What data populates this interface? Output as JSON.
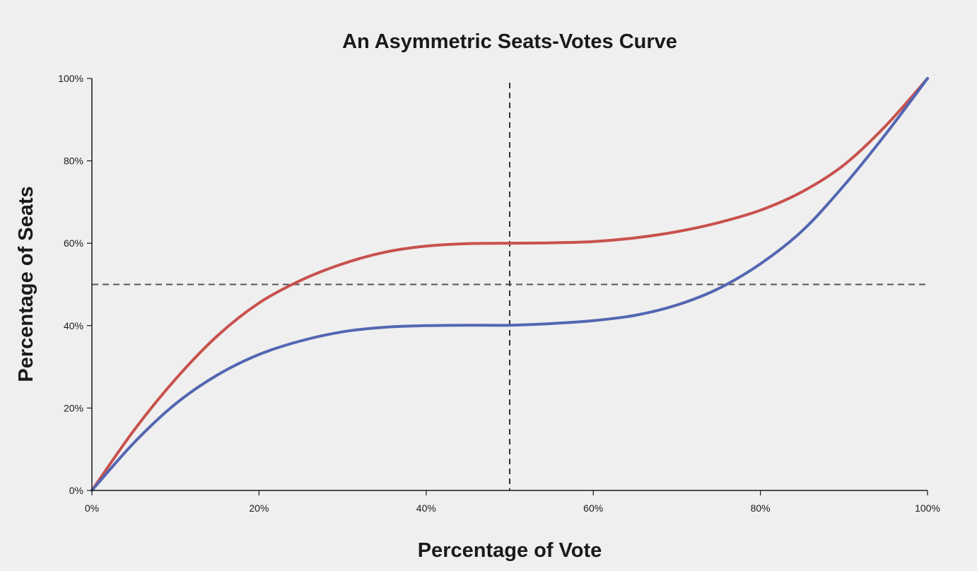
{
  "chart_data": {
    "type": "line",
    "title": "An Asymmetric Seats-Votes Curve",
    "xlabel": "Percentage of Vote",
    "ylabel": "Percentage of Seats",
    "xlim": [
      0,
      100
    ],
    "ylim": [
      0,
      100
    ],
    "x_ticks": [
      0,
      20,
      40,
      60,
      80,
      100
    ],
    "x_tick_labels": [
      "0%",
      "20%",
      "40%",
      "60%",
      "80%",
      "100%"
    ],
    "y_ticks": [
      0,
      20,
      40,
      60,
      80,
      100
    ],
    "y_tick_labels": [
      "0%",
      "20%",
      "40%",
      "60%",
      "80%",
      "100%"
    ],
    "grid": false,
    "reference_lines": [
      {
        "orientation": "horizontal",
        "value": 50,
        "style": "dashed"
      },
      {
        "orientation": "vertical",
        "value": 50,
        "style": "dashed"
      }
    ],
    "series": [
      {
        "color": "#c8514d",
        "x": [
          0,
          5,
          10,
          15,
          20,
          25,
          30,
          35,
          40,
          45,
          50,
          55,
          60,
          65,
          70,
          75,
          80,
          85,
          90,
          95,
          100
        ],
        "y": [
          0,
          14.5,
          27,
          37.5,
          45.5,
          51,
          55,
          57.8,
          59.3,
          59.9,
          60,
          60.1,
          60.4,
          61.3,
          62.8,
          65,
          68,
          72.5,
          79,
          88.5,
          100
        ]
      },
      {
        "color": "#5366b2",
        "x": [
          0,
          5,
          10,
          15,
          20,
          25,
          30,
          35,
          40,
          45,
          50,
          55,
          60,
          65,
          70,
          75,
          80,
          85,
          90,
          95,
          100
        ],
        "y": [
          0,
          11.5,
          21,
          28,
          33,
          36.3,
          38.5,
          39.6,
          40,
          40.1,
          40.1,
          40.5,
          41.2,
          42.5,
          45,
          49,
          55,
          63,
          74,
          86.5,
          100
        ]
      }
    ]
  }
}
